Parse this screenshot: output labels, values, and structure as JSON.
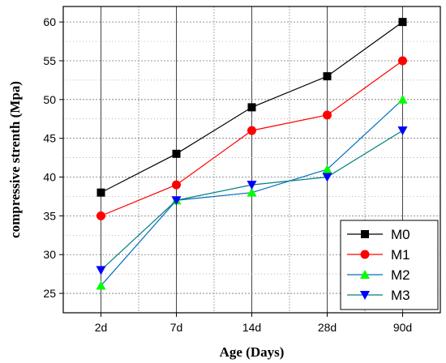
{
  "chart_data": {
    "type": "line",
    "xlabel": "Age (Days)",
    "ylabel": "compressive strenth (Mpa)",
    "categories": [
      "2d",
      "7d",
      "14d",
      "28d",
      "90d"
    ],
    "ylim": [
      22.5,
      62
    ],
    "yticks": [
      25,
      30,
      35,
      40,
      45,
      50,
      55,
      60
    ],
    "grid": true,
    "legend_position": "bottom-right",
    "series": [
      {
        "name": "M0",
        "values": [
          38,
          43,
          49,
          53,
          60
        ],
        "color": "#000000",
        "marker": "square"
      },
      {
        "name": "M1",
        "values": [
          35,
          39,
          46,
          48,
          55
        ],
        "color": "#ff0000",
        "marker": "circle"
      },
      {
        "name": "M2",
        "values": [
          26,
          37,
          38,
          41,
          50
        ],
        "color": "#0070c0",
        "marker_color": "#00ff00",
        "marker": "triangle-up"
      },
      {
        "name": "M3",
        "values": [
          28,
          37,
          39,
          40,
          46
        ],
        "color": "#008080",
        "marker_color": "#0000ff",
        "marker": "triangle-down"
      }
    ]
  }
}
